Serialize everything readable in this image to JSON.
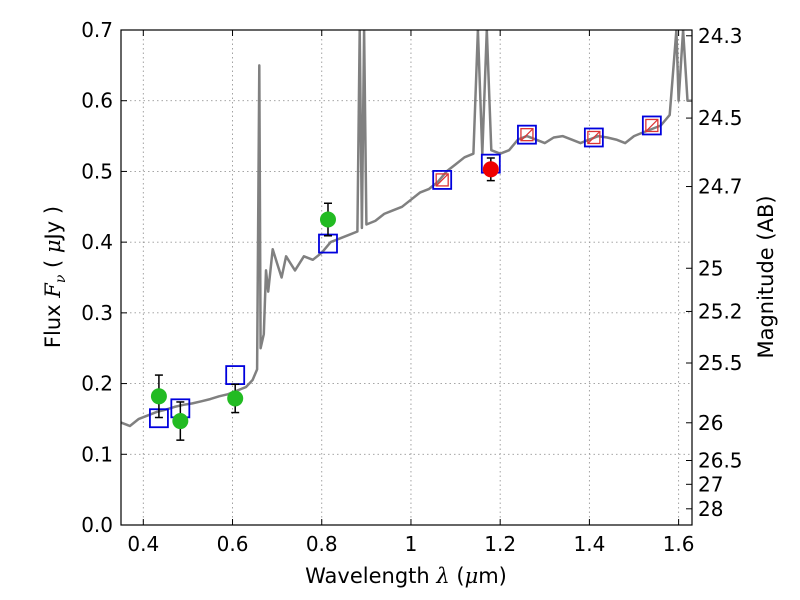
{
  "chart_data": {
    "type": "scatter",
    "xlabel_parts": {
      "prefix": "Wavelength  ",
      "symbol": "λ",
      "open": " (",
      "mu": "μ",
      "unit": "m)"
    },
    "ylabel_parts": {
      "prefix": "Flux  ",
      "symbol": "F",
      "sub": "ν",
      "open": "  ( ",
      "mu": "μ",
      "unit": "Jy )"
    },
    "y2label": "Magnitude (AB)",
    "xlim": [
      0.35,
      1.63
    ],
    "ylim": [
      0.0,
      0.7
    ],
    "x_ticks": [
      0.4,
      0.6,
      0.8,
      1.0,
      1.2,
      1.4,
      1.6
    ],
    "x_tick_labels": [
      "0.4",
      "0.6",
      "0.8",
      "1",
      "1.2",
      "1.4",
      "1.6"
    ],
    "y_ticks": [
      0.0,
      0.1,
      0.2,
      0.3,
      0.4,
      0.5,
      0.6,
      0.7
    ],
    "y_tick_labels": [
      "0.0",
      "0.1",
      "0.2",
      "0.3",
      "0.4",
      "0.5",
      "0.6",
      "0.7"
    ],
    "mag_ticks": [
      "24.3",
      "24.5",
      "24.7",
      "25",
      "25.2",
      "25.5",
      "26",
      "26.5",
      "27",
      "28"
    ],
    "grid": true,
    "colors": {
      "spectrum": "#808080",
      "green_points": "#22bb22",
      "red_points": "#ee0000",
      "model_squares": "#0000dd",
      "red_squares": "#dd3333",
      "errorbars": "#000000"
    },
    "model_spectrum": [
      [
        0.35,
        0.145
      ],
      [
        0.37,
        0.14
      ],
      [
        0.39,
        0.15
      ],
      [
        0.41,
        0.155
      ],
      [
        0.43,
        0.16
      ],
      [
        0.45,
        0.163
      ],
      [
        0.47,
        0.167
      ],
      [
        0.49,
        0.17
      ],
      [
        0.51,
        0.172
      ],
      [
        0.53,
        0.175
      ],
      [
        0.55,
        0.178
      ],
      [
        0.57,
        0.182
      ],
      [
        0.59,
        0.185
      ],
      [
        0.61,
        0.19
      ],
      [
        0.63,
        0.195
      ],
      [
        0.645,
        0.205
      ],
      [
        0.655,
        0.22
      ],
      [
        0.66,
        0.65
      ],
      [
        0.663,
        0.25
      ],
      [
        0.67,
        0.27
      ],
      [
        0.675,
        0.36
      ],
      [
        0.68,
        0.33
      ],
      [
        0.69,
        0.39
      ],
      [
        0.7,
        0.37
      ],
      [
        0.71,
        0.35
      ],
      [
        0.72,
        0.38
      ],
      [
        0.73,
        0.37
      ],
      [
        0.74,
        0.36
      ],
      [
        0.76,
        0.38
      ],
      [
        0.78,
        0.375
      ],
      [
        0.8,
        0.385
      ],
      [
        0.82,
        0.4
      ],
      [
        0.84,
        0.405
      ],
      [
        0.86,
        0.41
      ],
      [
        0.88,
        0.415
      ],
      [
        0.885,
        0.7
      ],
      [
        0.89,
        0.42
      ],
      [
        0.895,
        0.7
      ],
      [
        0.9,
        0.425
      ],
      [
        0.92,
        0.43
      ],
      [
        0.94,
        0.44
      ],
      [
        0.96,
        0.445
      ],
      [
        0.98,
        0.45
      ],
      [
        1.0,
        0.46
      ],
      [
        1.02,
        0.47
      ],
      [
        1.04,
        0.475
      ],
      [
        1.06,
        0.485
      ],
      [
        1.08,
        0.5
      ],
      [
        1.1,
        0.51
      ],
      [
        1.12,
        0.52
      ],
      [
        1.14,
        0.525
      ],
      [
        1.15,
        0.7
      ],
      [
        1.16,
        0.525
      ],
      [
        1.17,
        0.7
      ],
      [
        1.18,
        0.53
      ],
      [
        1.2,
        0.525
      ],
      [
        1.22,
        0.53
      ],
      [
        1.24,
        0.545
      ],
      [
        1.26,
        0.55
      ],
      [
        1.28,
        0.545
      ],
      [
        1.3,
        0.54
      ],
      [
        1.32,
        0.548
      ],
      [
        1.34,
        0.55
      ],
      [
        1.36,
        0.545
      ],
      [
        1.38,
        0.54
      ],
      [
        1.4,
        0.545
      ],
      [
        1.42,
        0.55
      ],
      [
        1.44,
        0.548
      ],
      [
        1.46,
        0.545
      ],
      [
        1.48,
        0.54
      ],
      [
        1.5,
        0.55
      ],
      [
        1.52,
        0.555
      ],
      [
        1.54,
        0.56
      ],
      [
        1.56,
        0.565
      ],
      [
        1.58,
        0.58
      ],
      [
        1.595,
        0.7
      ],
      [
        1.6,
        0.6
      ],
      [
        1.61,
        0.7
      ],
      [
        1.62,
        0.6
      ],
      [
        1.63,
        0.6
      ]
    ],
    "observed_green": [
      {
        "x": 0.435,
        "y": 0.182,
        "err": 0.03
      },
      {
        "x": 0.483,
        "y": 0.147,
        "err": 0.027
      },
      {
        "x": 0.606,
        "y": 0.179,
        "err": 0.02
      },
      {
        "x": 0.814,
        "y": 0.432,
        "err": 0.023
      }
    ],
    "observed_red": [
      {
        "x": 1.179,
        "y": 0.503,
        "err": 0.016
      }
    ],
    "model_squares": [
      {
        "x": 0.435,
        "y": 0.151
      },
      {
        "x": 0.483,
        "y": 0.165
      },
      {
        "x": 0.606,
        "y": 0.212
      },
      {
        "x": 0.814,
        "y": 0.398
      },
      {
        "x": 1.07,
        "y": 0.488
      },
      {
        "x": 1.179,
        "y": 0.511
      },
      {
        "x": 1.26,
        "y": 0.552
      },
      {
        "x": 1.41,
        "y": 0.548
      },
      {
        "x": 1.54,
        "y": 0.565
      }
    ],
    "red_squares": [
      {
        "x": 1.07,
        "y": 0.488
      },
      {
        "x": 1.26,
        "y": 0.552
      },
      {
        "x": 1.41,
        "y": 0.548
      },
      {
        "x": 1.54,
        "y": 0.565
      }
    ]
  }
}
